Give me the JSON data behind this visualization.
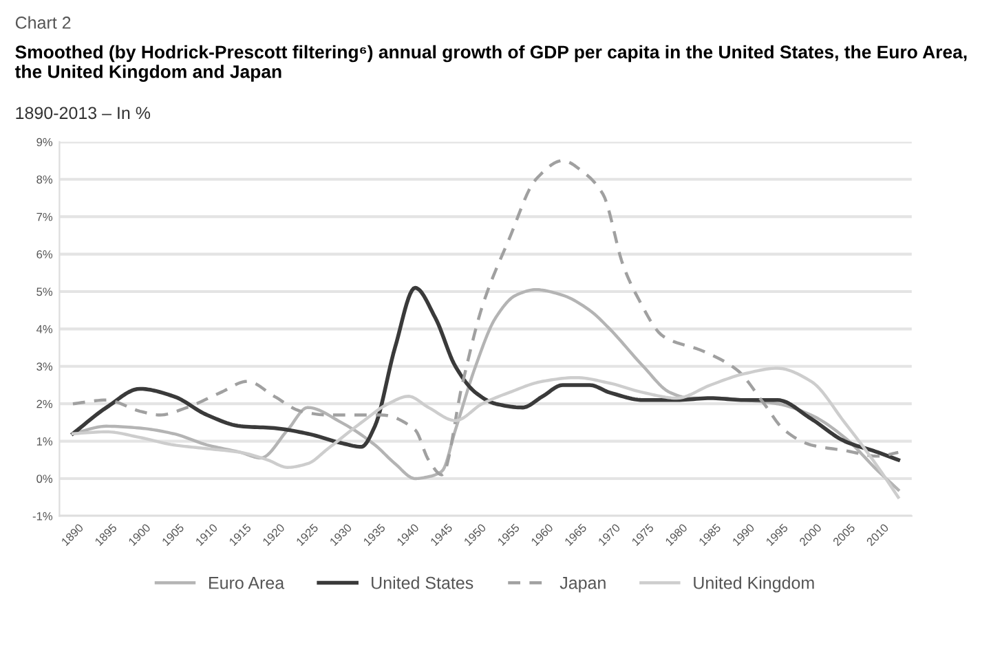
{
  "chart_data": {
    "type": "line",
    "title": "Smoothed (by Hodrick-Prescott filtering⁶) annual growth of GDP per capita in the United States, the Euro Area, the United Kingdom and Japan",
    "subtitle": "1890-2013 – In %",
    "annotations": [
      "Chart 2"
    ],
    "xlim": [
      1888,
      2015
    ],
    "xticks": [
      1890,
      1895,
      1900,
      1905,
      1910,
      1915,
      1920,
      1925,
      1930,
      1935,
      1940,
      1945,
      1950,
      1955,
      1960,
      1965,
      1970,
      1975,
      1980,
      1985,
      1990,
      1995,
      2000,
      2005,
      2010
    ],
    "ylim": [
      -1,
      9
    ],
    "yticks": [
      {
        "value": -1,
        "label": "-1%"
      },
      {
        "value": 0,
        "label": "0%"
      },
      {
        "value": 1,
        "label": "1%"
      },
      {
        "value": 2,
        "label": "2%"
      },
      {
        "value": 3,
        "label": "3%"
      },
      {
        "value": 4,
        "label": "4%"
      },
      {
        "value": 5,
        "label": "5%"
      },
      {
        "value": 6,
        "label": "6%"
      },
      {
        "value": 7,
        "label": "7%"
      },
      {
        "value": 8,
        "label": "8%"
      },
      {
        "value": 9,
        "label": "9%"
      }
    ],
    "grid": "y",
    "legend": "bottom",
    "marker": "none",
    "series": [
      {
        "name": "Euro Area",
        "color": "#b4b4b4",
        "line_style": "solid",
        "x": [
          1890,
          1895,
          1900,
          1905,
          1910,
          1915,
          1918,
          1922,
          1925,
          1930,
          1935,
          1938,
          1941,
          1943,
          1945,
          1947,
          1950,
          1953,
          1956,
          1959,
          1963,
          1967,
          1970,
          1975,
          1979,
          1982,
          1986,
          1990,
          1995,
          2000,
          2005,
          2010,
          2013
        ],
        "values": [
          1.2,
          1.4,
          1.35,
          1.2,
          0.9,
          0.7,
          0.55,
          1.3,
          1.9,
          1.5,
          0.9,
          0.4,
          0.0,
          0.05,
          0.2,
          1.3,
          3.0,
          4.3,
          4.9,
          5.05,
          4.9,
          4.5,
          4.0,
          3.0,
          2.3,
          2.15,
          2.15,
          2.1,
          2.0,
          1.7,
          1.1,
          0.2,
          -0.3
        ]
      },
      {
        "name": "United States",
        "color": "#3a3a3a",
        "line_style": "solid",
        "x": [
          1890,
          1895,
          1900,
          1905,
          1910,
          1915,
          1920,
          1925,
          1930,
          1933,
          1935,
          1938,
          1941,
          1944,
          1947,
          1950,
          1953,
          1957,
          1960,
          1963,
          1967,
          1970,
          1975,
          1980,
          1985,
          1990,
          1995,
          2000,
          2005,
          2010,
          2013
        ],
        "values": [
          1.2,
          1.9,
          2.4,
          2.2,
          1.7,
          1.4,
          1.35,
          1.2,
          0.95,
          0.85,
          1.4,
          3.5,
          5.1,
          4.3,
          3.0,
          2.3,
          2.0,
          1.9,
          2.2,
          2.5,
          2.5,
          2.3,
          2.1,
          2.1,
          2.15,
          2.1,
          2.1,
          1.6,
          1.0,
          0.7,
          0.5
        ]
      },
      {
        "name": "Japan",
        "color": "#a0a0a0",
        "line_style": "dashed",
        "x": [
          1890,
          1895,
          1900,
          1903,
          1907,
          1912,
          1916,
          1920,
          1924,
          1928,
          1933,
          1936,
          1941,
          1943,
          1945,
          1948,
          1951,
          1955,
          1959,
          1963,
          1966,
          1969,
          1972,
          1974,
          1978,
          1984,
          1989,
          1993,
          1996,
          2000,
          2005,
          2010,
          2013
        ],
        "values": [
          2.0,
          2.1,
          1.8,
          1.7,
          1.9,
          2.3,
          2.6,
          2.2,
          1.8,
          1.7,
          1.7,
          1.7,
          1.3,
          0.5,
          0.1,
          2.5,
          4.6,
          6.4,
          8.0,
          8.5,
          8.2,
          7.6,
          5.7,
          4.9,
          3.8,
          3.4,
          2.9,
          2.0,
          1.3,
          0.9,
          0.75,
          0.6,
          0.7
        ]
      },
      {
        "name": "United Kingdom",
        "color": "#cdcdcd",
        "line_style": "solid",
        "x": [
          1890,
          1895,
          1900,
          1905,
          1910,
          1915,
          1919,
          1922,
          1925,
          1928,
          1933,
          1937,
          1940,
          1943,
          1947,
          1951,
          1955,
          1960,
          1965,
          1970,
          1975,
          1980,
          1985,
          1990,
          1995,
          2000,
          2005,
          2010,
          2013
        ],
        "values": [
          1.2,
          1.25,
          1.1,
          0.9,
          0.8,
          0.7,
          0.5,
          0.3,
          0.4,
          0.8,
          1.5,
          2.0,
          2.2,
          1.9,
          1.55,
          2.0,
          2.3,
          2.6,
          2.7,
          2.55,
          2.3,
          2.15,
          2.5,
          2.8,
          2.95,
          2.6,
          1.5,
          0.3,
          -0.5
        ]
      }
    ]
  }
}
